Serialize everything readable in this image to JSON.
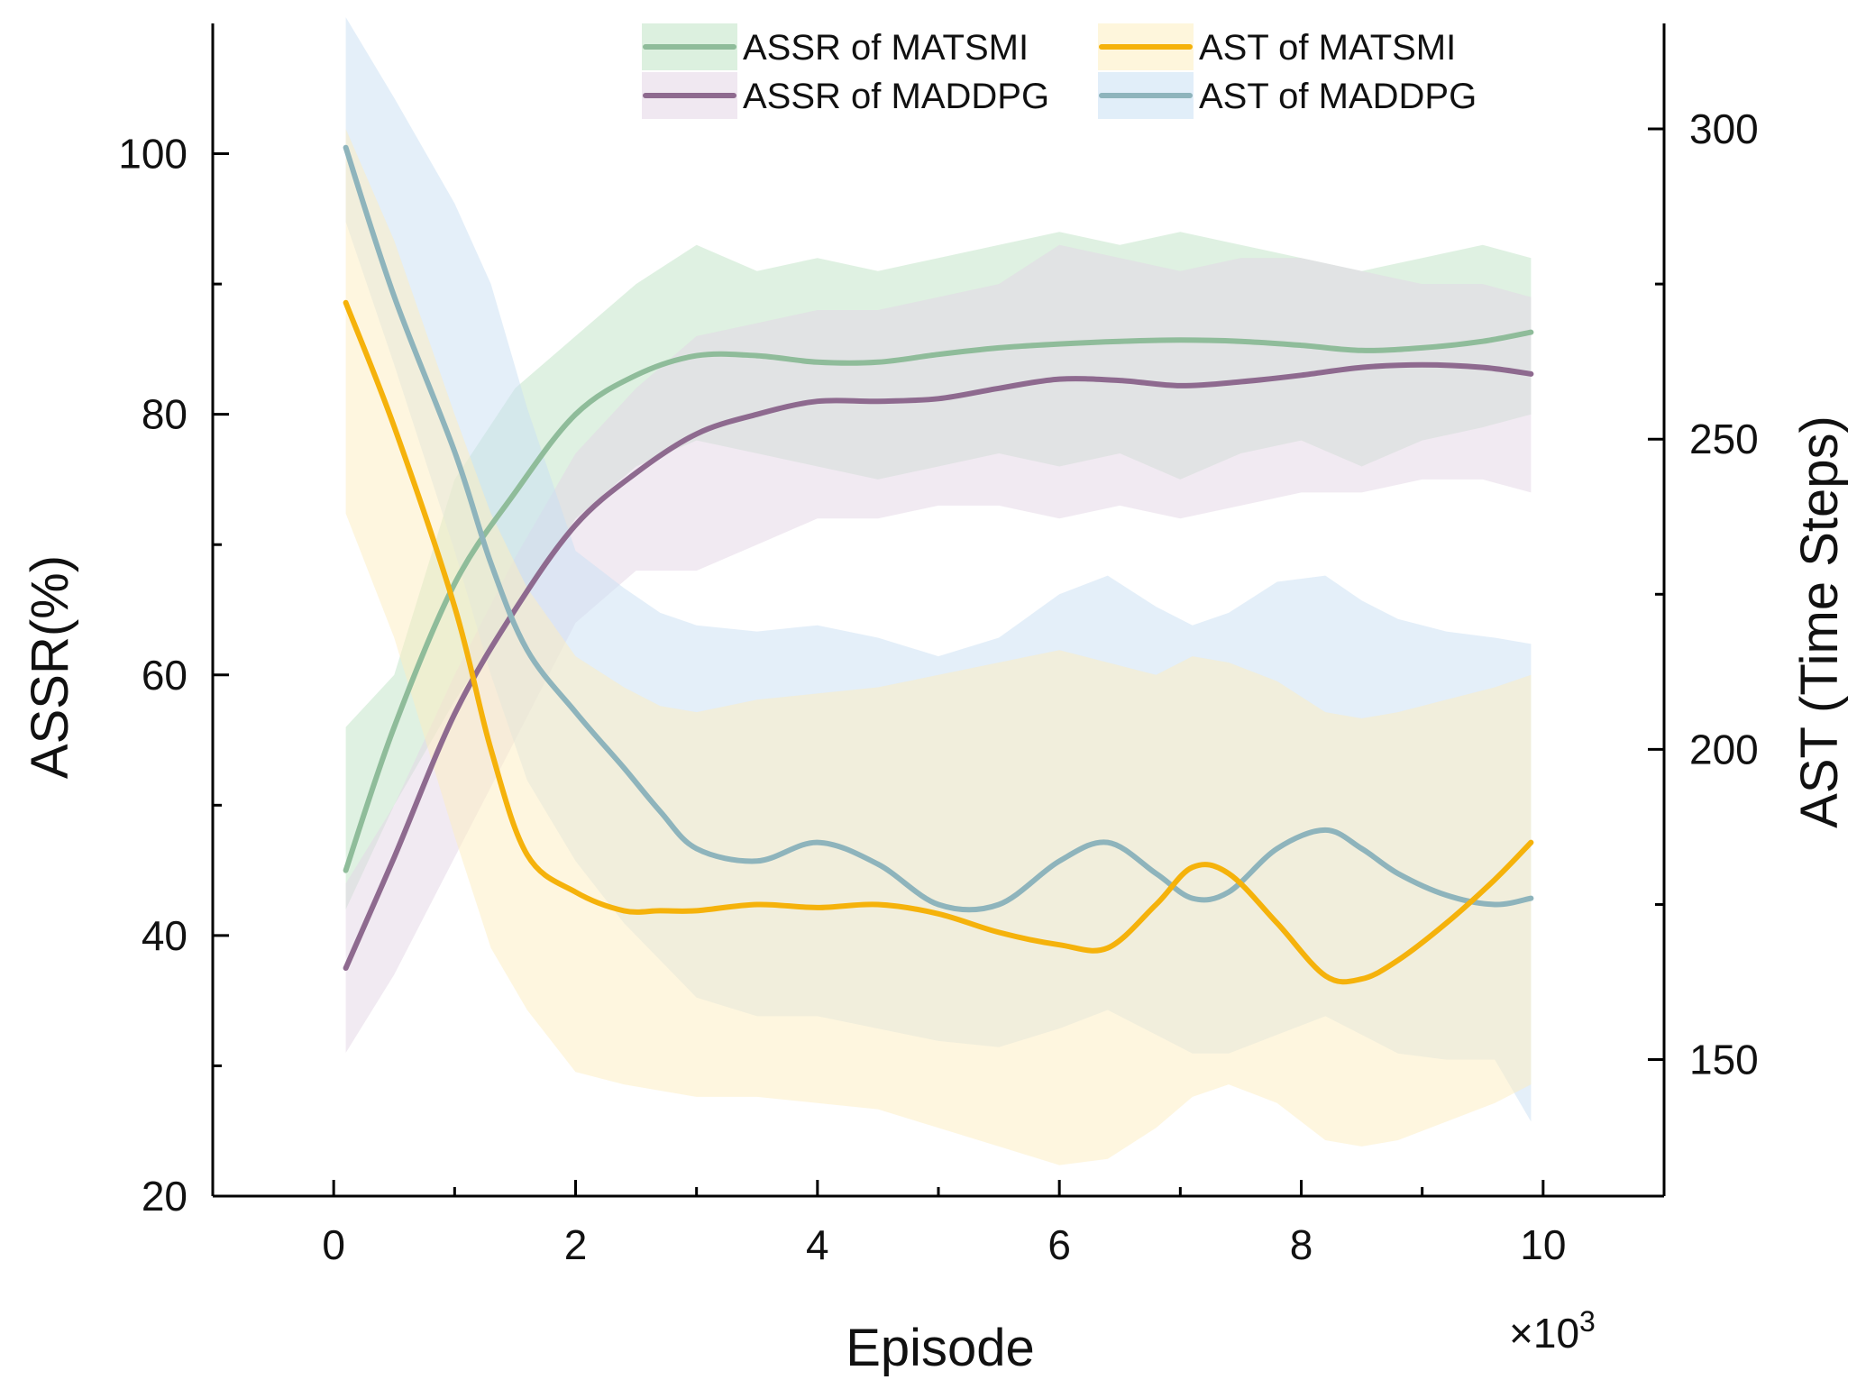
{
  "chart_data": {
    "type": "line",
    "xlabel": "Episode",
    "x_multiplier_label": "×10",
    "x_multiplier_exp": "3",
    "ylabel": "ASSR(%)",
    "y2label": "AST (Time Steps)",
    "xlim": [
      -1,
      11
    ],
    "ylim": [
      20,
      110
    ],
    "y2lim": [
      128,
      317
    ],
    "xticks": [
      0,
      2,
      4,
      6,
      8,
      10
    ],
    "xtick_labels": [
      "0",
      "2",
      "4",
      "6",
      "8",
      "10"
    ],
    "yticks": [
      20,
      40,
      60,
      80,
      100
    ],
    "ytick_labels": [
      "20",
      "40",
      "60",
      "80",
      "100"
    ],
    "y2ticks": [
      150,
      200,
      250,
      300
    ],
    "y2tick_labels": [
      "150",
      "200",
      "250",
      "300"
    ],
    "grid": false,
    "legend_position": "top-center",
    "series": [
      {
        "name": "ASSR of MATSMI",
        "axis": "left",
        "color": "#8fbc9a",
        "band_color": "#bfe3c5",
        "x": [
          0.1,
          0.5,
          1.0,
          1.5,
          2.0,
          2.5,
          3.0,
          3.5,
          4.0,
          4.5,
          5.0,
          5.5,
          6.0,
          6.5,
          7.0,
          7.5,
          8.0,
          8.5,
          9.0,
          9.5,
          9.9
        ],
        "values": [
          45,
          56,
          67,
          74,
          80,
          83,
          84.5,
          84.5,
          84,
          84,
          84.6,
          85.1,
          85.4,
          85.6,
          85.7,
          85.6,
          85.3,
          84.9,
          85.1,
          85.6,
          86.3
        ],
        "upper": [
          56,
          60,
          75,
          82,
          86,
          90,
          93,
          91,
          92,
          91,
          92,
          93,
          94,
          93,
          94,
          93,
          92,
          91,
          92,
          93,
          92
        ],
        "lower": [
          42,
          50,
          58,
          65,
          72,
          76,
          78,
          77,
          76,
          75,
          76,
          77,
          76,
          77,
          75,
          77,
          78,
          76,
          78,
          79,
          80
        ]
      },
      {
        "name": "ASSR of MADDPG",
        "axis": "left",
        "color": "#8e6a8f",
        "band_color": "#e3d5e6",
        "x": [
          0.1,
          0.5,
          1.0,
          1.5,
          2.0,
          2.5,
          3.0,
          3.5,
          4.0,
          4.5,
          5.0,
          5.5,
          6.0,
          6.5,
          7.0,
          7.5,
          8.0,
          8.5,
          9.0,
          9.5,
          9.9
        ],
        "values": [
          37.5,
          46,
          57,
          65,
          71.5,
          75.5,
          78.5,
          80,
          81,
          81,
          81.2,
          82,
          82.7,
          82.6,
          82.2,
          82.5,
          83,
          83.6,
          83.8,
          83.6,
          83.1
        ],
        "upper": [
          44,
          50,
          60,
          69,
          77,
          82,
          86,
          87,
          88,
          88,
          89,
          90,
          93,
          92,
          91,
          92,
          92,
          91,
          90,
          90,
          89
        ],
        "lower": [
          31,
          37,
          46,
          55,
          64,
          68,
          68,
          70,
          72,
          72,
          73,
          73,
          72,
          73,
          72,
          73,
          74,
          74,
          75,
          75,
          74
        ]
      },
      {
        "name": "AST of MATSMI",
        "axis": "right",
        "color": "#f5b20b",
        "band_color": "#fdeebf",
        "x": [
          0.1,
          0.5,
          1.0,
          1.3,
          1.6,
          2.0,
          2.4,
          2.7,
          3.0,
          3.5,
          4.0,
          4.5,
          5.0,
          5.5,
          6.0,
          6.4,
          6.8,
          7.1,
          7.4,
          7.8,
          8.2,
          8.5,
          8.8,
          9.2,
          9.6,
          9.9
        ],
        "values": [
          272,
          252,
          223,
          200,
          183,
          177,
          174,
          174,
          174,
          175,
          174.5,
          175,
          173.5,
          170.5,
          168.5,
          168,
          175,
          181,
          180,
          172,
          163.5,
          163,
          166,
          172,
          179,
          185
        ],
        "upper": [
          300,
          282,
          254,
          238,
          226,
          215,
          210,
          207,
          206,
          208,
          209,
          210,
          212,
          214,
          216,
          214,
          212,
          215,
          214,
          211,
          206,
          205,
          206,
          208,
          210,
          212
        ],
        "lower": [
          238,
          218,
          186,
          168,
          158,
          148,
          146,
          145,
          144,
          144,
          143,
          142,
          139,
          136,
          133,
          134,
          139,
          144,
          146,
          143,
          137,
          136,
          137,
          140,
          143,
          146
        ]
      },
      {
        "name": "AST of MADDPG",
        "axis": "right",
        "color": "#8eb4bc",
        "band_color": "#c9e0f4",
        "x": [
          0.1,
          0.5,
          1.0,
          1.3,
          1.6,
          2.0,
          2.4,
          2.7,
          3.0,
          3.5,
          4.0,
          4.5,
          5.0,
          5.5,
          6.0,
          6.4,
          6.8,
          7.1,
          7.4,
          7.8,
          8.2,
          8.5,
          8.8,
          9.2,
          9.6,
          9.9
        ],
        "values": [
          297,
          273,
          248,
          230,
          216,
          206,
          197,
          190,
          184,
          182,
          185,
          181.5,
          175,
          175,
          182,
          185,
          180,
          176,
          177,
          184,
          187,
          184,
          180,
          176.5,
          175,
          176
        ],
        "upper": [
          318,
          305,
          288,
          275,
          255,
          232,
          226,
          222,
          220,
          219,
          220,
          218,
          215,
          218,
          225,
          228,
          223,
          220,
          222,
          227,
          228,
          224,
          221,
          219,
          218,
          217
        ],
        "lower": [
          285,
          262,
          232,
          212,
          195,
          182,
          172,
          166,
          160,
          157,
          157,
          155,
          153,
          152,
          155,
          158,
          154,
          151,
          151,
          154,
          157,
          154,
          151,
          150,
          150,
          140
        ]
      }
    ]
  }
}
